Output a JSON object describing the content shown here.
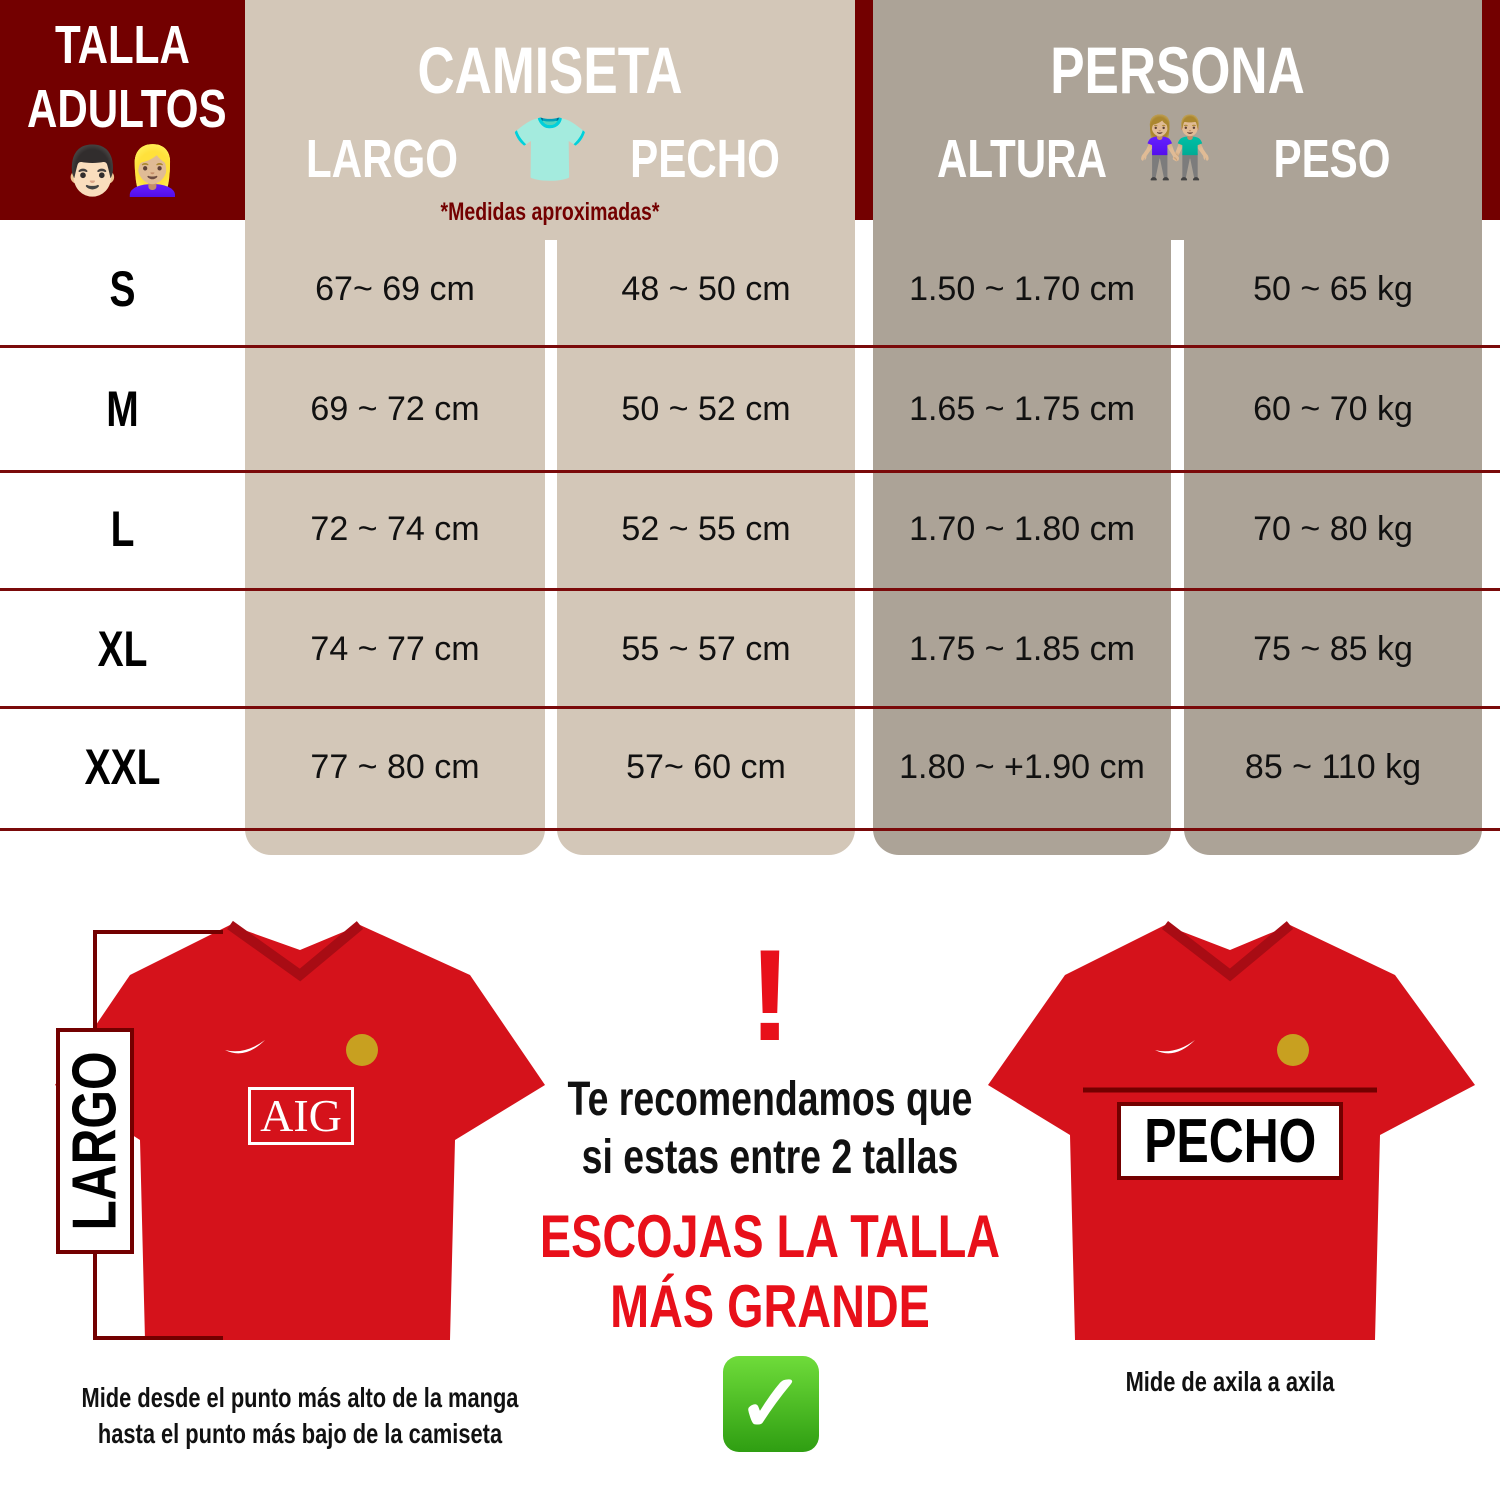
{
  "header": {
    "title_line1": "TALLA",
    "title_line2": "ADULTOS",
    "emoji": "👨🏻👱🏼‍♀️",
    "camiseta": "CAMISETA",
    "largo": "LARGO",
    "pecho": "PECHO",
    "shirt_emoji": "👕",
    "note": "*Medidas aproximadas*",
    "persona": "PERSONA",
    "altura": "ALTURA",
    "peso": "PESO",
    "couple_emoji": "👫🏼"
  },
  "colors": {
    "dark_red": "#730000",
    "camiseta_band": "#d3c7b8",
    "persona_band": "#aca397",
    "accent_red": "#e8101a"
  },
  "rows": [
    {
      "size": "S",
      "largo": "67~ 69 cm",
      "pecho": "48 ~ 50 cm",
      "altura": "1.50 ~ 1.70 cm",
      "peso": "50 ~ 65 kg"
    },
    {
      "size": "M",
      "largo": "69 ~ 72 cm",
      "pecho": "50 ~ 52 cm",
      "altura": "1.65 ~ 1.75 cm",
      "peso": "60 ~ 70 kg"
    },
    {
      "size": "L",
      "largo": "72 ~ 74 cm",
      "pecho": "52 ~ 55 cm",
      "altura": "1.70 ~ 1.80 cm",
      "peso": "70 ~ 80 kg"
    },
    {
      "size": "XL",
      "largo": "74 ~ 77 cm",
      "pecho": "55 ~ 57 cm",
      "altura": "1.75 ~ 1.85 cm",
      "peso": "75 ~ 85 kg"
    },
    {
      "size": "XXL",
      "largo": "77 ~ 80 cm",
      "pecho": "57~ 60 cm",
      "altura": "1.80 ~ +1.90 cm",
      "peso": "85 ~ 110 kg"
    }
  ],
  "bottom": {
    "largo_label": "LARGO",
    "pecho_label": "PECHO",
    "sponsor": "AIG",
    "largo_caption_1": "Mide desde el punto más alto de la manga",
    "largo_caption_2": "hasta el punto más bajo de la camiseta",
    "pecho_caption": "Mide de axila a axila",
    "exclaim": "!",
    "rec_1": "Te recomendamos que",
    "rec_2": "si estas entre 2 tallas",
    "highlight_1": "ESCOJAS LA TALLA",
    "highlight_2": "MÁS GRANDE",
    "check": "✓"
  }
}
